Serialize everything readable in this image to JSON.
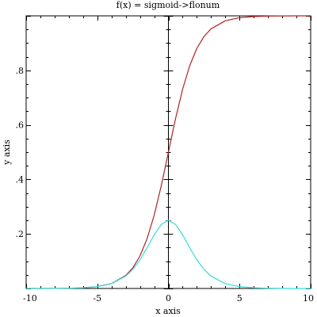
{
  "chart_data": {
    "type": "line",
    "title": "f(x) = sigmoid->flonum",
    "xlabel": "x axis",
    "ylabel": "y axis",
    "xlim": [
      -10,
      10
    ],
    "ylim": [
      0,
      1
    ],
    "x_ticks": [
      {
        "value": -10,
        "label": "-10"
      },
      {
        "value": -5,
        "label": "-5"
      },
      {
        "value": 0,
        "label": "0"
      },
      {
        "value": 5,
        "label": "5"
      },
      {
        "value": 10,
        "label": "10"
      }
    ],
    "y_ticks": [
      {
        "value": 0.2,
        "label": ".2"
      },
      {
        "value": 0.4,
        "label": ".4"
      },
      {
        "value": 0.6,
        "label": ".6"
      },
      {
        "value": 0.8,
        "label": ".8"
      }
    ],
    "grid": false,
    "series": [
      {
        "color": "#b22222",
        "x": [
          -10,
          -9,
          -8,
          -7,
          -6,
          -5,
          -4,
          -3,
          -2.5,
          -2,
          -1.5,
          -1,
          -0.5,
          0,
          0.5,
          1,
          1.5,
          2,
          2.5,
          3,
          4,
          5,
          6,
          7,
          8,
          9,
          10
        ],
        "y": [
          0.0,
          0.0001,
          0.0003,
          0.0009,
          0.0025,
          0.0067,
          0.018,
          0.0474,
          0.0759,
          0.1192,
          0.1824,
          0.2689,
          0.3775,
          0.5,
          0.6225,
          0.7311,
          0.8176,
          0.8808,
          0.9241,
          0.9526,
          0.982,
          0.9933,
          0.9975,
          0.9991,
          0.9997,
          0.9999,
          1.0
        ]
      },
      {
        "color": "#33dddd",
        "x": [
          -10,
          -9,
          -8,
          -7,
          -6,
          -5,
          -4,
          -3,
          -2.5,
          -2,
          -1.5,
          -1,
          -0.5,
          0,
          0.5,
          1,
          1.5,
          2,
          2.5,
          3,
          4,
          5,
          6,
          7,
          8,
          9,
          10
        ],
        "y": [
          0.0,
          0.0001,
          0.0003,
          0.0009,
          0.0025,
          0.0066,
          0.0177,
          0.0452,
          0.0701,
          0.105,
          0.1491,
          0.1966,
          0.235,
          0.25,
          0.235,
          0.1966,
          0.1491,
          0.105,
          0.0701,
          0.0452,
          0.0177,
          0.0066,
          0.0025,
          0.0009,
          0.0003,
          0.0001,
          0.0
        ]
      }
    ]
  }
}
